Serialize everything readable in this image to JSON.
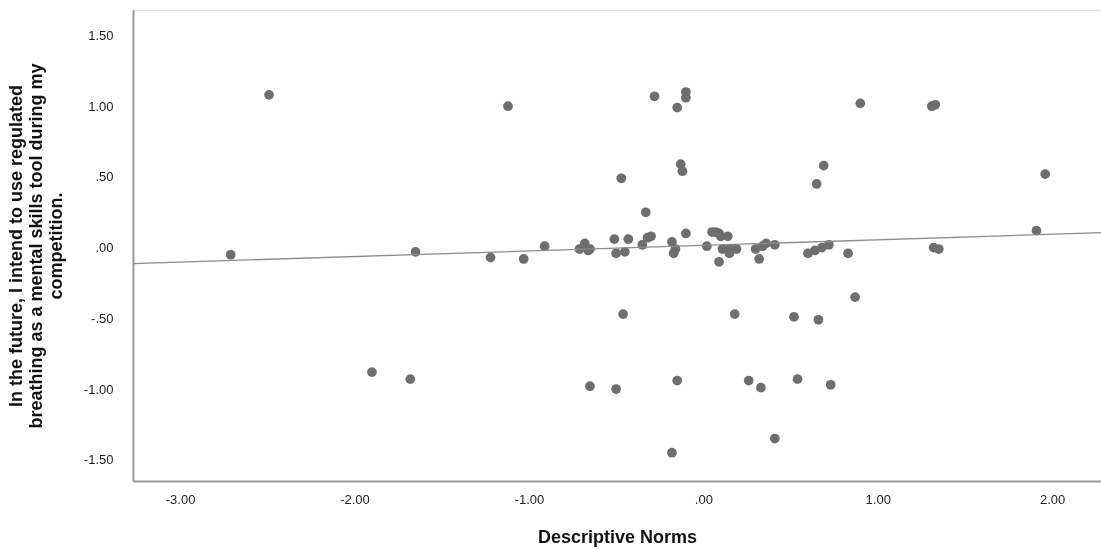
{
  "chart_data": {
    "type": "scatter",
    "xlabel": "Descriptive Norms",
    "ylabel": "In the future, I intend to use regulated breathing as a mental skills tool during my competition.",
    "xlim": [
      -3.27,
      2.28
    ],
    "ylim": [
      -1.65,
      1.68
    ],
    "xticks": [
      {
        "value": -3,
        "label": "-3.00"
      },
      {
        "value": -2,
        "label": "-2.00"
      },
      {
        "value": -1,
        "label": "-1.00"
      },
      {
        "value": 0,
        "label": ".00"
      },
      {
        "value": 1,
        "label": "1.00"
      },
      {
        "value": 2,
        "label": "2.00"
      }
    ],
    "yticks": [
      {
        "value": -1.5,
        "label": "-1.50"
      },
      {
        "value": -1,
        "label": "-1.00"
      },
      {
        "value": -0.5,
        "label": "-.50"
      },
      {
        "value": 0,
        "label": ".00"
      },
      {
        "value": 0.5,
        "label": ".50"
      },
      {
        "value": 1,
        "label": "1.00"
      },
      {
        "value": 1.5,
        "label": "1.50"
      }
    ],
    "grid": false,
    "series": [
      {
        "color": "#6e6e6e",
        "marker": "circle",
        "x": [
          -2.71,
          -2.49,
          -1.65,
          -1.9,
          -1.68,
          -1.22,
          -1.03,
          -1.12,
          -0.91,
          -0.68,
          -0.71,
          -0.66,
          -0.65,
          -0.65,
          -0.5,
          -0.51,
          -0.5,
          -0.45,
          -0.47,
          -0.46,
          -0.43,
          -0.33,
          -0.35,
          -0.32,
          -0.3,
          -0.28,
          -0.15,
          -0.1,
          -0.1,
          -0.13,
          -0.12,
          -0.18,
          -0.17,
          -0.16,
          -0.1,
          -0.18,
          -0.15,
          0.02,
          0.05,
          0.07,
          0.09,
          0.1,
          0.14,
          0.09,
          0.11,
          0.15,
          0.19,
          0.15,
          0.18,
          0.26,
          0.33,
          0.3,
          0.34,
          0.36,
          0.41,
          0.32,
          0.41,
          0.52,
          0.54,
          0.6,
          0.64,
          0.68,
          0.72,
          0.66,
          0.69,
          0.65,
          0.73,
          0.83,
          0.87,
          0.9,
          1.31,
          1.33,
          1.32,
          1.35,
          1.91,
          1.96
        ],
        "values": [
          -0.05,
          1.08,
          -0.03,
          -0.88,
          -0.93,
          -0.07,
          -0.08,
          1.0,
          0.01,
          0.03,
          -0.01,
          -0.02,
          -0.01,
          -0.98,
          -1.0,
          0.06,
          -0.04,
          -0.03,
          0.49,
          -0.47,
          0.06,
          0.25,
          0.02,
          0.07,
          0.08,
          1.07,
          0.99,
          1.1,
          1.06,
          0.59,
          0.54,
          0.04,
          -0.04,
          -0.01,
          0.1,
          -1.45,
          -0.94,
          0.01,
          0.11,
          0.11,
          0.1,
          0.08,
          0.08,
          -0.1,
          -0.01,
          -0.01,
          -0.01,
          -0.04,
          -0.47,
          -0.94,
          -0.99,
          -0.01,
          0.01,
          0.03,
          0.02,
          -0.08,
          -1.35,
          -0.49,
          -0.93,
          -0.04,
          -0.02,
          0.0,
          0.02,
          -0.51,
          0.58,
          0.45,
          -0.97,
          -0.04,
          -0.35,
          1.02,
          1.0,
          1.01,
          0.0,
          -0.01,
          0.12,
          0.52
        ]
      },
      {
        "type": "line",
        "marker": "none",
        "color": "#8c8c8c",
        "x": [
          -3.27,
          2.28
        ],
        "values": [
          -0.113,
          0.106
        ]
      }
    ]
  }
}
